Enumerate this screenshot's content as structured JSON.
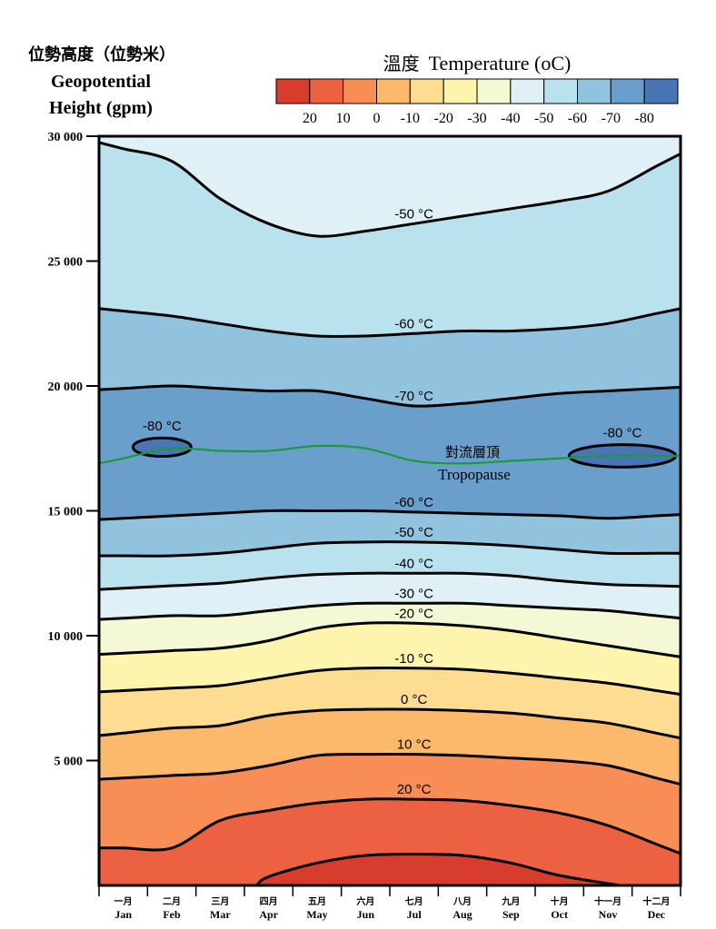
{
  "chart_data": {
    "type": "area",
    "title": "",
    "ylabel_zh": "位勢高度（位勢米）",
    "ylabel_en_1": "Geopotential",
    "ylabel_en_2": "Height (gpm)",
    "legend_title_zh": "溫度",
    "legend_title_en": "Temperature (",
    "legend_title_unit": "oC)",
    "ylim": [
      0,
      30000
    ],
    "yticks": [
      {
        "value": 5000,
        "label": "5 000"
      },
      {
        "value": 10000,
        "label": "10 000"
      },
      {
        "value": 15000,
        "label": "15 000"
      },
      {
        "value": 20000,
        "label": "20 000"
      },
      {
        "value": 25000,
        "label": "25 000"
      },
      {
        "value": 30000,
        "label": "30 000"
      }
    ],
    "months": [
      {
        "zh": "一月",
        "en": "Jan"
      },
      {
        "zh": "二月",
        "en": "Feb"
      },
      {
        "zh": "三月",
        "en": "Mar"
      },
      {
        "zh": "四月",
        "en": "Apr"
      },
      {
        "zh": "五月",
        "en": "May"
      },
      {
        "zh": "六月",
        "en": "Jun"
      },
      {
        "zh": "七月",
        "en": "Jul"
      },
      {
        "zh": "八月",
        "en": "Aug"
      },
      {
        "zh": "九月",
        "en": "Sep"
      },
      {
        "zh": "十月",
        "en": "Oct"
      },
      {
        "zh": "十一月",
        "en": "Nov"
      },
      {
        "zh": "十二月",
        "en": "Dec"
      }
    ],
    "legend_bins": [
      {
        "color": "#d73c2c"
      },
      {
        "color": "#ec6142"
      },
      {
        "color": "#f88e55"
      },
      {
        "color": "#fcb86b"
      },
      {
        "color": "#fedc91"
      },
      {
        "color": "#fdf5ae"
      },
      {
        "color": "#f4f8d4"
      },
      {
        "color": "#dff1f6"
      },
      {
        "color": "#bae1ee"
      },
      {
        "color": "#91c3df"
      },
      {
        "color": "#6a9fcb"
      },
      {
        "color": "#4a75b4"
      }
    ],
    "legend_ticks": [
      "20",
      "10",
      "0",
      "-10",
      "-20",
      "-30",
      "-40",
      "-50",
      "-60",
      "-70",
      "-80"
    ],
    "isotherms_lower": [
      {
        "temp": "20",
        "label": "20 °C",
        "color": "#ec6142",
        "heights": [
          1500,
          1500,
          2600,
          3000,
          3300,
          3450,
          3450,
          3400,
          3200,
          2900,
          2400,
          1650
        ]
      },
      {
        "temp": "10",
        "label": "10 °C",
        "color": "#f88e55",
        "heights": [
          4300,
          4400,
          4500,
          4800,
          5200,
          5250,
          5250,
          5200,
          5100,
          5000,
          4800,
          4300
        ]
      },
      {
        "temp": "0",
        "label": "0 °C",
        "color": "#fcb86b",
        "heights": [
          6100,
          6300,
          6400,
          6800,
          7000,
          7050,
          7050,
          7000,
          6900,
          6700,
          6500,
          6100
        ]
      },
      {
        "temp": "-10",
        "label": "-10 °C",
        "color": "#fedc91",
        "heights": [
          7800,
          7900,
          8000,
          8300,
          8600,
          8700,
          8700,
          8650,
          8500,
          8300,
          8100,
          7800
        ]
      },
      {
        "temp": "-20",
        "label": "-20 °C",
        "color": "#fdf5ae",
        "heights": [
          9300,
          9400,
          9500,
          9800,
          10300,
          10500,
          10500,
          10400,
          10200,
          9900,
          9600,
          9300
        ]
      },
      {
        "temp": "-30",
        "label": "-30 °C",
        "color": "#f4f8d4",
        "heights": [
          10700,
          10800,
          10800,
          11000,
          11200,
          11300,
          11300,
          11300,
          11200,
          11100,
          11000,
          10800
        ]
      },
      {
        "temp": "-40",
        "label": "-40 °C",
        "color": "#dff1f6",
        "heights": [
          11900,
          12000,
          12100,
          12300,
          12450,
          12500,
          12500,
          12500,
          12400,
          12200,
          12050,
          12000
        ]
      },
      {
        "temp": "-50",
        "label": "-50 °C",
        "color": "#bae1ee",
        "heights": [
          13200,
          13200,
          13300,
          13500,
          13700,
          13750,
          13750,
          13700,
          13600,
          13450,
          13300,
          13300
        ]
      },
      {
        "temp": "-60",
        "label": "-60 °C",
        "color": "#91c3df",
        "heights": [
          14700,
          14800,
          14900,
          15000,
          15000,
          15000,
          14950,
          14900,
          14850,
          14800,
          14700,
          14800
        ]
      }
    ],
    "isotherms_upper": [
      {
        "temp": "-70",
        "label": "-70 °C",
        "color": "#91c3df",
        "heights": [
          19900,
          20000,
          19900,
          19800,
          19800,
          19500,
          19200,
          19300,
          19500,
          19700,
          19800,
          19900
        ]
      },
      {
        "temp": "-60",
        "label": "-60 °C",
        "color": "#bae1ee",
        "heights": [
          23000,
          22800,
          22500,
          22200,
          22000,
          22000,
          22100,
          22200,
          22200,
          22300,
          22500,
          22900
        ]
      },
      {
        "temp": "-50",
        "label": "-50 °C",
        "color": "#dff1f6",
        "heights": [
          29500,
          29000,
          27500,
          26500,
          26000,
          26200,
          26500,
          26800,
          27100,
          27400,
          27800,
          28800
        ]
      }
    ],
    "core_fill": "#6a9fcb",
    "cold_pools": [
      {
        "label": "-80 °C",
        "month_center": 1.3,
        "month_halfwidth": 0.6,
        "height_center": 17550,
        "height_halfwidth": 370,
        "color": "#4a75b4"
      },
      {
        "label": "-80 °C",
        "month_center": 10.8,
        "month_halfwidth": 1.1,
        "height_center": 17200,
        "height_halfwidth": 450,
        "color": "#4a75b4"
      }
    ],
    "tropopause": {
      "label_zh": "對流層頂",
      "label_en": "Tropopause",
      "color": "#1a9a3c",
      "heights": [
        17100,
        17500,
        17400,
        17400,
        17600,
        17500,
        17000,
        16900,
        17000,
        17100,
        17200,
        17200
      ]
    }
  }
}
